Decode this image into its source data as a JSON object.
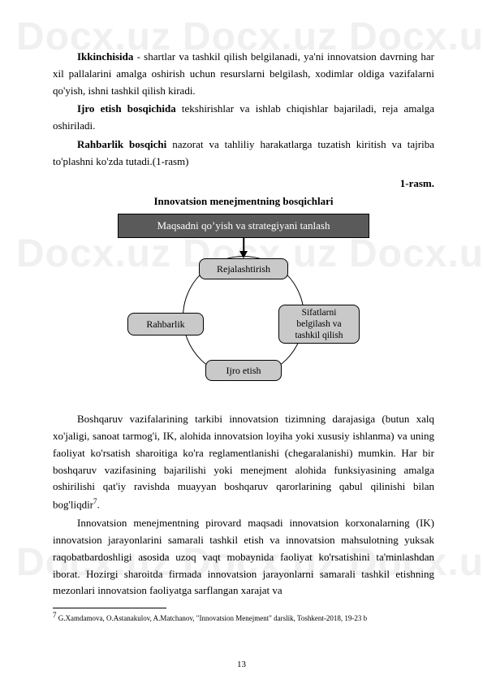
{
  "watermark": "Docx.uz",
  "paragraphs": {
    "p1_lead": "Ikkinchisida",
    "p1_rest": " - shartlar va tashkil qilish belgilanadi, ya'ni innovatsion davrning har xil pallalarini amalga oshirish uchun resurslarni belgilash, xodimlar oldiga vazifalarni qo'yish, ishni tashkil qilish kiradi.",
    "p2_lead": "Ijro etish bosqichida",
    "p2_rest": " tekshirishlar va ishlab chiqishlar bajariladi, reja amalga oshiriladi.",
    "p3_lead": "Rahbarlik bosqichi",
    "p3_rest": " nazorat va tahliliy harakatlarga tuzatish kiritish va tajriba to'plashni ko'zda tutadi.(1-rasm)",
    "rasm_label": "1-rasm.",
    "diagram_title": "Innovatsion menejmentning bosqichlari",
    "p4": "Boshqaruv vazifalarining tarkibi innovatsion tizimning darajasiga (butun xalq xo'jaligi, sanoat tarmog'i, IK, alohida innovatsion loyiha yoki xususiy ishlanma) va uning faoliyat ko'rsatish sharoitiga ko'ra reglamentlanishi (chegaralanishi) mumkin. Har bir boshqaruv vazifasining bajarilishi yoki menejment alohida funksiyasining amalga oshirilishi qat'iy ravishda muayyan boshqaruv qarorlarining qabul qilinishi bilan bog'liqdir",
    "p4_foot": "7",
    "p4_end": ".",
    "p5": "Innovatsion menejmentning pirovard maqsadi innovatsion korxonalarning (IK) innovatsion jarayonlarini samarali tashkil etish va innovatsion mahsulotning yuksak raqobatbardoshligi asosida uzoq vaqt mobaynida faoliyat ko'rsatishini ta'minlashdan iborat. Hozirgi sharoitda firmada innovatsion jarayonlarni samarali tashkil etishning mezonlari innovatsion faoliyatga sarflangan xarajat va"
  },
  "diagram": {
    "top_box": "Maqsadni qoʼyish va strategiyani tanlash",
    "node_top": "Rejalashtirish",
    "node_right": "Sifatlarni belgilash va tashkil qilish",
    "node_left": "Rahbarlik",
    "node_bottom": "Ijro etish",
    "colors": {
      "top_bg": "#5a5a5a",
      "top_text": "#ffffff",
      "node_bg": "#c9c9c9",
      "border": "#000000"
    }
  },
  "footnote": {
    "num": "7",
    "text": " G.Xamdamova, O.Astanakulov, A.Matchanov, \"Innovatsion Menejment\" darslik, Toshkent-2018, 19-23 b"
  },
  "page_number": "13"
}
